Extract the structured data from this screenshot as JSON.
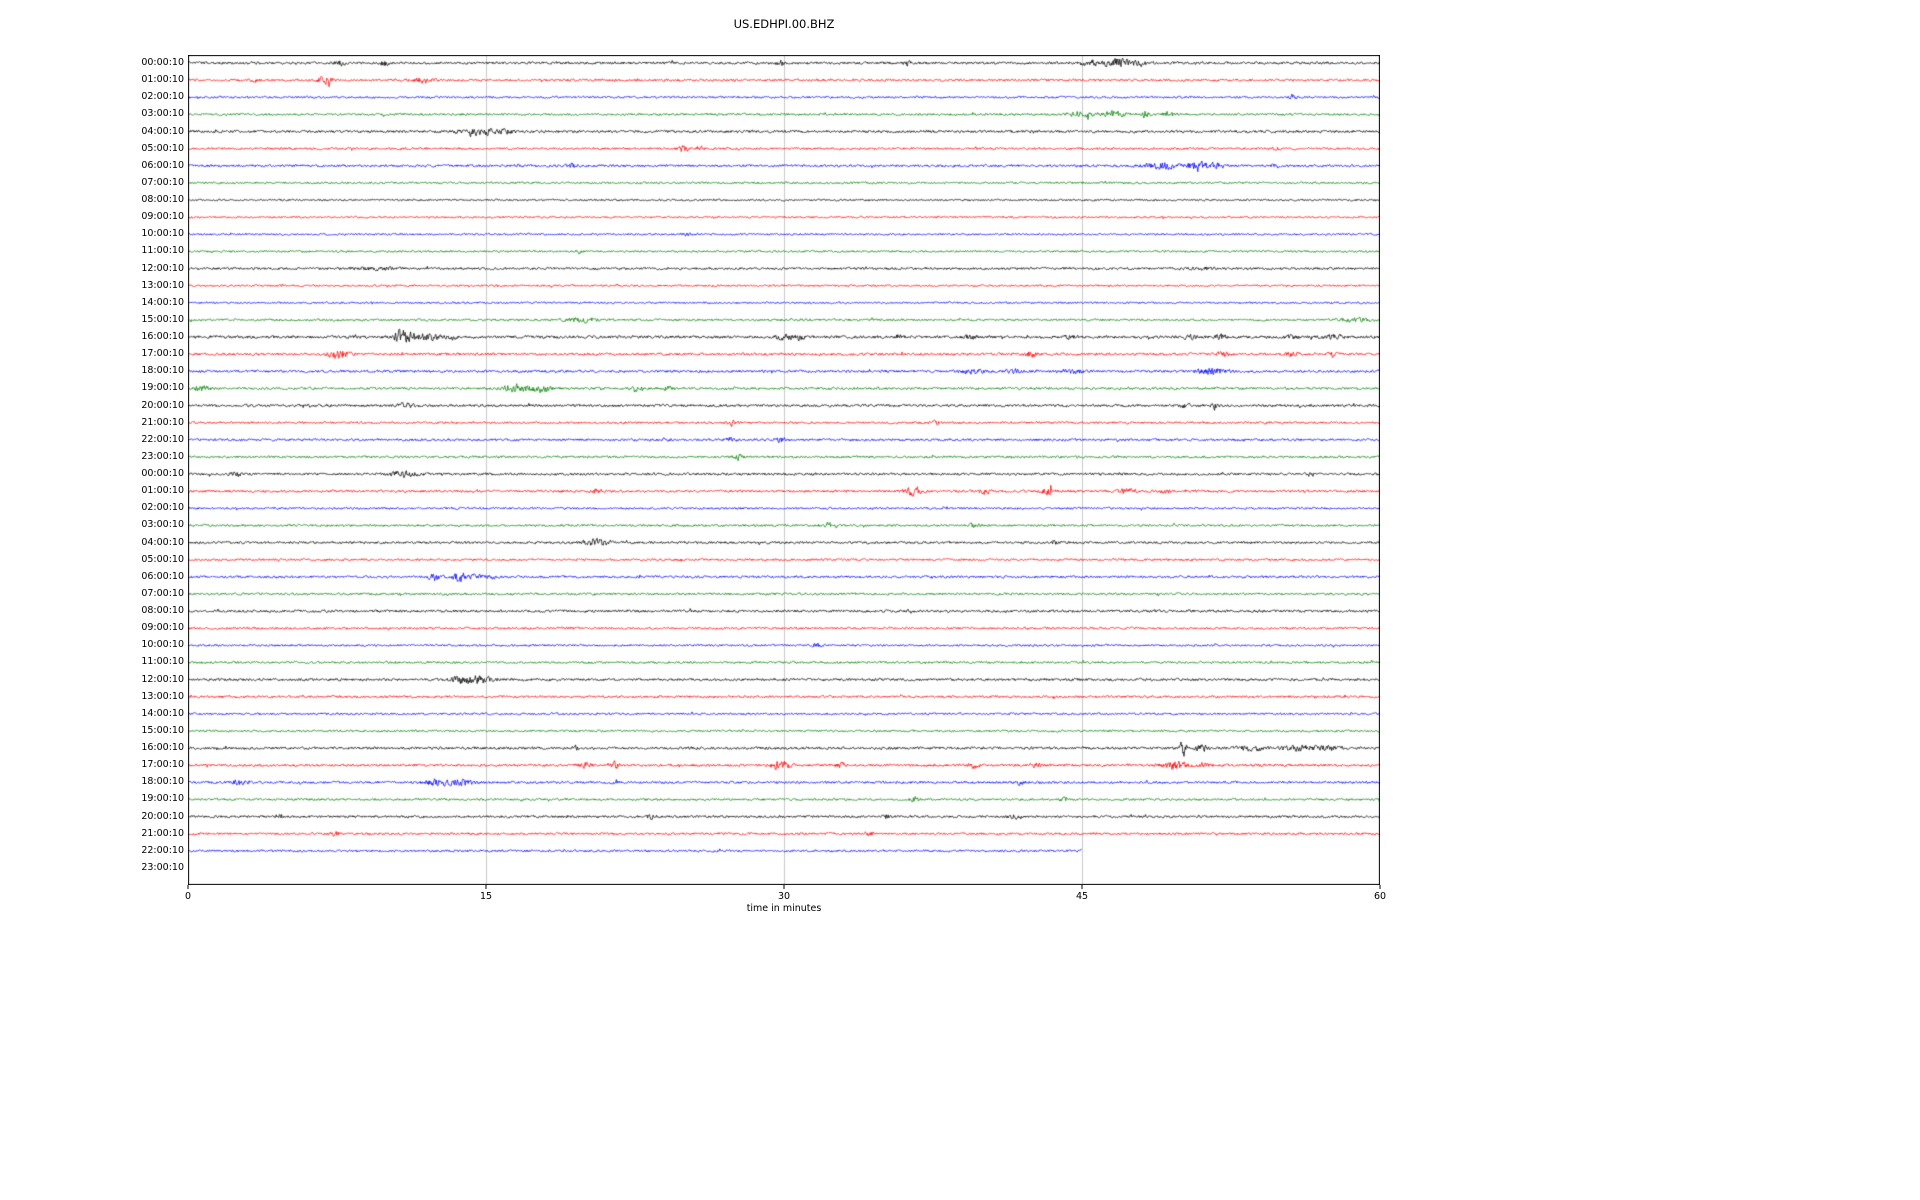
{
  "chart_data": {
    "type": "line",
    "subtype": "helicorder-seismogram",
    "title": "US.EDHPI.00.BHZ",
    "xlabel": "time in minutes",
    "xlim": [
      0,
      60
    ],
    "x_ticks": [
      0,
      15,
      30,
      45,
      60
    ],
    "x_tick_labels": [
      "0",
      "15",
      "30",
      "45",
      "60"
    ],
    "grid": true,
    "trace_colors_cycle": [
      "#000000",
      "#ff0000",
      "#0000ff",
      "#008000"
    ],
    "traces": [
      {
        "label": "00:00:10",
        "color": "#000000",
        "base_amp": 1.6,
        "end_min": 60,
        "events": [
          {
            "t": 7.7,
            "a": 2.5,
            "w": 0.2
          },
          {
            "t": 9.9,
            "a": 2.5,
            "w": 0.2
          },
          {
            "t": 29.8,
            "a": 3,
            "w": 0.12
          },
          {
            "t": 36.2,
            "a": 2.5,
            "w": 0.12
          },
          {
            "t": 45.3,
            "a": 4,
            "w": 0.3
          },
          {
            "t": 46.8,
            "a": 5,
            "w": 0.5
          },
          {
            "t": 47.8,
            "a": 3,
            "w": 0.3
          }
        ]
      },
      {
        "label": "01:00:10",
        "color": "#ff0000",
        "base_amp": 1.5,
        "end_min": 60,
        "events": [
          {
            "t": 3.4,
            "a": 2,
            "w": 0.15
          },
          {
            "t": 6.9,
            "a": 5,
            "w": 0.25
          },
          {
            "t": 11.9,
            "a": 4,
            "w": 0.3
          }
        ]
      },
      {
        "label": "02:00:10",
        "color": "#0000ff",
        "base_amp": 1.3,
        "end_min": 60,
        "events": [
          {
            "t": 55.6,
            "a": 3,
            "w": 0.12
          }
        ]
      },
      {
        "label": "03:00:10",
        "color": "#008000",
        "base_amp": 1.4,
        "end_min": 60,
        "events": [
          {
            "t": 45,
            "a": 3,
            "w": 0.5
          },
          {
            "t": 46.6,
            "a": 3.5,
            "w": 0.4
          },
          {
            "t": 48.2,
            "a": 4,
            "w": 0.15
          },
          {
            "t": 49.4,
            "a": 2.5,
            "w": 0.25
          }
        ]
      },
      {
        "label": "04:00:10",
        "color": "#000000",
        "base_amp": 1.6,
        "end_min": 60,
        "events": [
          {
            "t": 14,
            "a": 6,
            "w": 0.25
          },
          {
            "t": 14.8,
            "a": 3.5,
            "w": 0.5
          },
          {
            "t": 16,
            "a": 2,
            "w": 0.3
          }
        ]
      },
      {
        "label": "05:00:10",
        "color": "#ff0000",
        "base_amp": 1.4,
        "end_min": 60,
        "events": [
          {
            "t": 24.9,
            "a": 3.5,
            "w": 0.2
          },
          {
            "t": 25.7,
            "a": 2,
            "w": 0.2
          },
          {
            "t": 54.8,
            "a": 2,
            "w": 0.2
          }
        ]
      },
      {
        "label": "06:00:10",
        "color": "#0000ff",
        "base_amp": 1.5,
        "end_min": 60,
        "events": [
          {
            "t": 19.3,
            "a": 3.5,
            "w": 0.15
          },
          {
            "t": 49,
            "a": 4,
            "w": 0.6
          },
          {
            "t": 50.8,
            "a": 7,
            "w": 0.25
          },
          {
            "t": 51.6,
            "a": 3,
            "w": 0.4
          },
          {
            "t": 54.7,
            "a": 2.5,
            "w": 0.15
          }
        ]
      },
      {
        "label": "07:00:10",
        "color": "#008000",
        "base_amp": 1.3,
        "end_min": 60,
        "events": []
      },
      {
        "label": "08:00:10",
        "color": "#000000",
        "base_amp": 1.2,
        "end_min": 60,
        "events": []
      },
      {
        "label": "09:00:10",
        "color": "#ff0000",
        "base_amp": 1.2,
        "end_min": 60,
        "events": []
      },
      {
        "label": "10:00:10",
        "color": "#0000ff",
        "base_amp": 1.2,
        "end_min": 60,
        "events": [
          {
            "t": 25,
            "a": 1.5,
            "w": 0.2
          }
        ]
      },
      {
        "label": "11:00:10",
        "color": "#008000",
        "base_amp": 1.3,
        "end_min": 60,
        "events": [
          {
            "t": 19.7,
            "a": 2,
            "w": 0.12
          }
        ]
      },
      {
        "label": "12:00:10",
        "color": "#000000",
        "base_amp": 1.5,
        "end_min": 60,
        "events": [
          {
            "t": 9.5,
            "a": 1.5,
            "w": 0.8
          },
          {
            "t": 51,
            "a": 1.5,
            "w": 0.5
          }
        ]
      },
      {
        "label": "13:00:10",
        "color": "#ff0000",
        "base_amp": 1.2,
        "end_min": 60,
        "events": []
      },
      {
        "label": "14:00:10",
        "color": "#0000ff",
        "base_amp": 1.2,
        "end_min": 60,
        "events": []
      },
      {
        "label": "15:00:10",
        "color": "#008000",
        "base_amp": 1.4,
        "end_min": 60,
        "events": [
          {
            "t": 19.4,
            "a": 2,
            "w": 0.5
          },
          {
            "t": 20.2,
            "a": 1.8,
            "w": 0.3
          },
          {
            "t": 58.8,
            "a": 2,
            "w": 0.6
          }
        ]
      },
      {
        "label": "16:00:10",
        "color": "#000000",
        "base_amp": 1.8,
        "end_min": 60,
        "events": [
          {
            "t": 10.7,
            "a": 8,
            "w": 0.22
          },
          {
            "t": 11.4,
            "a": 5,
            "w": 0.3
          },
          {
            "t": 12.3,
            "a": 3,
            "w": 0.3
          },
          {
            "t": 13.2,
            "a": 2.5,
            "w": 0.2
          },
          {
            "t": 30,
            "a": 4,
            "w": 0.3
          },
          {
            "t": 30.8,
            "a": 3,
            "w": 0.2
          },
          {
            "t": 35.8,
            "a": 2.5,
            "w": 0.15
          },
          {
            "t": 39.4,
            "a": 2,
            "w": 0.2
          },
          {
            "t": 44.4,
            "a": 2,
            "w": 0.2
          },
          {
            "t": 50.4,
            "a": 3,
            "w": 0.2
          },
          {
            "t": 52,
            "a": 2.5,
            "w": 0.2
          },
          {
            "t": 55.5,
            "a": 2.5,
            "w": 0.2
          },
          {
            "t": 57.7,
            "a": 2.5,
            "w": 0.3
          }
        ]
      },
      {
        "label": "17:00:10",
        "color": "#ff0000",
        "base_amp": 1.6,
        "end_min": 60,
        "events": [
          {
            "t": 7.5,
            "a": 5,
            "w": 0.4
          },
          {
            "t": 42.4,
            "a": 3,
            "w": 0.25
          },
          {
            "t": 52.1,
            "a": 3,
            "w": 0.2
          },
          {
            "t": 55.6,
            "a": 2.5,
            "w": 0.2
          },
          {
            "t": 57.6,
            "a": 3,
            "w": 0.15
          }
        ]
      },
      {
        "label": "18:00:10",
        "color": "#0000ff",
        "base_amp": 1.6,
        "end_min": 60,
        "events": [
          {
            "t": 39.5,
            "a": 2.5,
            "w": 0.4
          },
          {
            "t": 41.5,
            "a": 2.5,
            "w": 0.3
          },
          {
            "t": 44.5,
            "a": 2.5,
            "w": 0.4
          },
          {
            "t": 51.5,
            "a": 3.5,
            "w": 0.5
          }
        ]
      },
      {
        "label": "19:00:10",
        "color": "#008000",
        "base_amp": 1.5,
        "end_min": 60,
        "events": [
          {
            "t": 0.6,
            "a": 3,
            "w": 0.3
          },
          {
            "t": 16.3,
            "a": 4,
            "w": 0.3
          },
          {
            "t": 17.1,
            "a": 3.5,
            "w": 0.5
          },
          {
            "t": 17.9,
            "a": 3,
            "w": 0.3
          },
          {
            "t": 22.6,
            "a": 3,
            "w": 0.15
          },
          {
            "t": 24.2,
            "a": 2,
            "w": 0.2
          }
        ]
      },
      {
        "label": "20:00:10",
        "color": "#000000",
        "base_amp": 1.6,
        "end_min": 60,
        "events": [
          {
            "t": 5.9,
            "a": 2,
            "w": 0.2
          },
          {
            "t": 10.9,
            "a": 2.5,
            "w": 0.3
          },
          {
            "t": 50.2,
            "a": 2,
            "w": 0.2
          },
          {
            "t": 51.7,
            "a": 4,
            "w": 0.12
          }
        ]
      },
      {
        "label": "21:00:10",
        "color": "#ff0000",
        "base_amp": 1.4,
        "end_min": 60,
        "events": [
          {
            "t": 27.4,
            "a": 3.5,
            "w": 0.15
          },
          {
            "t": 37.6,
            "a": 2.5,
            "w": 0.15
          }
        ]
      },
      {
        "label": "22:00:10",
        "color": "#0000ff",
        "base_amp": 1.5,
        "end_min": 60,
        "events": [
          {
            "t": 24,
            "a": 2,
            "w": 0.2
          },
          {
            "t": 27.3,
            "a": 2.5,
            "w": 0.2
          },
          {
            "t": 29.8,
            "a": 2.5,
            "w": 0.2
          }
        ]
      },
      {
        "label": "23:00:10",
        "color": "#008000",
        "base_amp": 1.4,
        "end_min": 60,
        "events": [
          {
            "t": 27.7,
            "a": 3.5,
            "w": 0.15
          }
        ]
      },
      {
        "label": "00:00:10",
        "color": "#000000",
        "base_amp": 1.5,
        "end_min": 60,
        "events": [
          {
            "t": 2.4,
            "a": 2,
            "w": 0.2
          },
          {
            "t": 10.8,
            "a": 3,
            "w": 0.5
          },
          {
            "t": 56.5,
            "a": 3,
            "w": 0.15
          }
        ]
      },
      {
        "label": "01:00:10",
        "color": "#ff0000",
        "base_amp": 1.5,
        "end_min": 60,
        "events": [
          {
            "t": 20.5,
            "a": 2,
            "w": 0.2
          },
          {
            "t": 36.5,
            "a": 4.5,
            "w": 0.3
          },
          {
            "t": 40.1,
            "a": 3,
            "w": 0.2
          },
          {
            "t": 43.3,
            "a": 3.5,
            "w": 0.25
          },
          {
            "t": 47.2,
            "a": 3,
            "w": 0.3
          },
          {
            "t": 49.2,
            "a": 2.5,
            "w": 0.2
          }
        ]
      },
      {
        "label": "02:00:10",
        "color": "#0000ff",
        "base_amp": 1.3,
        "end_min": 60,
        "events": []
      },
      {
        "label": "03:00:10",
        "color": "#008000",
        "base_amp": 1.4,
        "end_min": 60,
        "events": [
          {
            "t": 32.3,
            "a": 2.5,
            "w": 0.3
          },
          {
            "t": 39.6,
            "a": 2,
            "w": 0.2
          }
        ]
      },
      {
        "label": "04:00:10",
        "color": "#000000",
        "base_amp": 1.5,
        "end_min": 60,
        "events": [
          {
            "t": 20.3,
            "a": 3,
            "w": 0.3
          },
          {
            "t": 20.9,
            "a": 2.5,
            "w": 0.3
          },
          {
            "t": 43.6,
            "a": 2.5,
            "w": 0.12
          }
        ]
      },
      {
        "label": "05:00:10",
        "color": "#ff0000",
        "base_amp": 1.4,
        "end_min": 60,
        "events": []
      },
      {
        "label": "06:00:10",
        "color": "#0000ff",
        "base_amp": 1.5,
        "end_min": 60,
        "events": [
          {
            "t": 12.4,
            "a": 4,
            "w": 0.25
          },
          {
            "t": 13.7,
            "a": 6,
            "w": 0.2
          },
          {
            "t": 14.5,
            "a": 2.5,
            "w": 0.3
          },
          {
            "t": 15.2,
            "a": 2,
            "w": 0.2
          }
        ]
      },
      {
        "label": "07:00:10",
        "color": "#008000",
        "base_amp": 1.4,
        "end_min": 60,
        "events": []
      },
      {
        "label": "08:00:10",
        "color": "#000000",
        "base_amp": 1.6,
        "end_min": 60,
        "events": []
      },
      {
        "label": "09:00:10",
        "color": "#ff0000",
        "base_amp": 1.4,
        "end_min": 60,
        "events": []
      },
      {
        "label": "10:00:10",
        "color": "#0000ff",
        "base_amp": 1.3,
        "end_min": 60,
        "events": [
          {
            "t": 31.7,
            "a": 2.5,
            "w": 0.15
          }
        ]
      },
      {
        "label": "11:00:10",
        "color": "#008000",
        "base_amp": 1.4,
        "end_min": 60,
        "events": []
      },
      {
        "label": "12:00:10",
        "color": "#000000",
        "base_amp": 1.6,
        "end_min": 60,
        "events": [
          {
            "t": 13.8,
            "a": 4,
            "w": 0.4
          },
          {
            "t": 14.8,
            "a": 4,
            "w": 0.4
          }
        ]
      },
      {
        "label": "13:00:10",
        "color": "#ff0000",
        "base_amp": 1.5,
        "end_min": 60,
        "events": []
      },
      {
        "label": "14:00:10",
        "color": "#0000ff",
        "base_amp": 1.3,
        "end_min": 60,
        "events": []
      },
      {
        "label": "15:00:10",
        "color": "#008000",
        "base_amp": 1.3,
        "end_min": 60,
        "events": []
      },
      {
        "label": "16:00:10",
        "color": "#000000",
        "base_amp": 1.6,
        "end_min": 60,
        "events": [
          {
            "t": 19.5,
            "a": 2.5,
            "w": 0.1
          },
          {
            "t": 50.1,
            "a": 9,
            "w": 0.12
          },
          {
            "t": 51,
            "a": 3,
            "w": 0.3
          },
          {
            "t": 53.5,
            "a": 2.5,
            "w": 0.5
          },
          {
            "t": 56,
            "a": 3,
            "w": 0.6
          },
          {
            "t": 57.5,
            "a": 3,
            "w": 0.4
          }
        ]
      },
      {
        "label": "17:00:10",
        "color": "#ff0000",
        "base_amp": 1.6,
        "end_min": 60,
        "events": [
          {
            "t": 20,
            "a": 3.5,
            "w": 0.2
          },
          {
            "t": 21.5,
            "a": 4,
            "w": 0.12
          },
          {
            "t": 29.8,
            "a": 4,
            "w": 0.4
          },
          {
            "t": 32.8,
            "a": 3,
            "w": 0.2
          },
          {
            "t": 39.6,
            "a": 2.5,
            "w": 0.2
          },
          {
            "t": 42.6,
            "a": 2.5,
            "w": 0.2
          },
          {
            "t": 49.7,
            "a": 5,
            "w": 0.4
          },
          {
            "t": 51.2,
            "a": 3,
            "w": 0.2
          }
        ]
      },
      {
        "label": "18:00:10",
        "color": "#0000ff",
        "base_amp": 1.5,
        "end_min": 60,
        "events": [
          {
            "t": 2.6,
            "a": 2.5,
            "w": 0.3
          },
          {
            "t": 12.6,
            "a": 3.5,
            "w": 0.5
          },
          {
            "t": 13.8,
            "a": 3,
            "w": 0.4
          },
          {
            "t": 21.5,
            "a": 3,
            "w": 0.12
          },
          {
            "t": 41.9,
            "a": 2.5,
            "w": 0.2
          }
        ]
      },
      {
        "label": "19:00:10",
        "color": "#008000",
        "base_amp": 1.4,
        "end_min": 60,
        "events": [
          {
            "t": 36.6,
            "a": 3,
            "w": 0.15
          },
          {
            "t": 44.1,
            "a": 3,
            "w": 0.15
          }
        ]
      },
      {
        "label": "20:00:10",
        "color": "#000000",
        "base_amp": 1.5,
        "end_min": 60,
        "events": [
          {
            "t": 4.6,
            "a": 3,
            "w": 0.12
          },
          {
            "t": 23.3,
            "a": 3,
            "w": 0.15
          },
          {
            "t": 35.1,
            "a": 3.5,
            "w": 0.12
          },
          {
            "t": 41.6,
            "a": 2.5,
            "w": 0.2
          }
        ]
      },
      {
        "label": "21:00:10",
        "color": "#ff0000",
        "base_amp": 1.4,
        "end_min": 60,
        "events": [
          {
            "t": 7.4,
            "a": 2.5,
            "w": 0.15
          },
          {
            "t": 34.3,
            "a": 2,
            "w": 0.2
          }
        ]
      },
      {
        "label": "22:00:10",
        "color": "#0000ff",
        "base_amp": 1.4,
        "end_min": 45,
        "events": []
      },
      {
        "label": "23:00:10",
        "color": "#008000",
        "base_amp": 1.3,
        "end_min": 0,
        "events": []
      }
    ]
  }
}
